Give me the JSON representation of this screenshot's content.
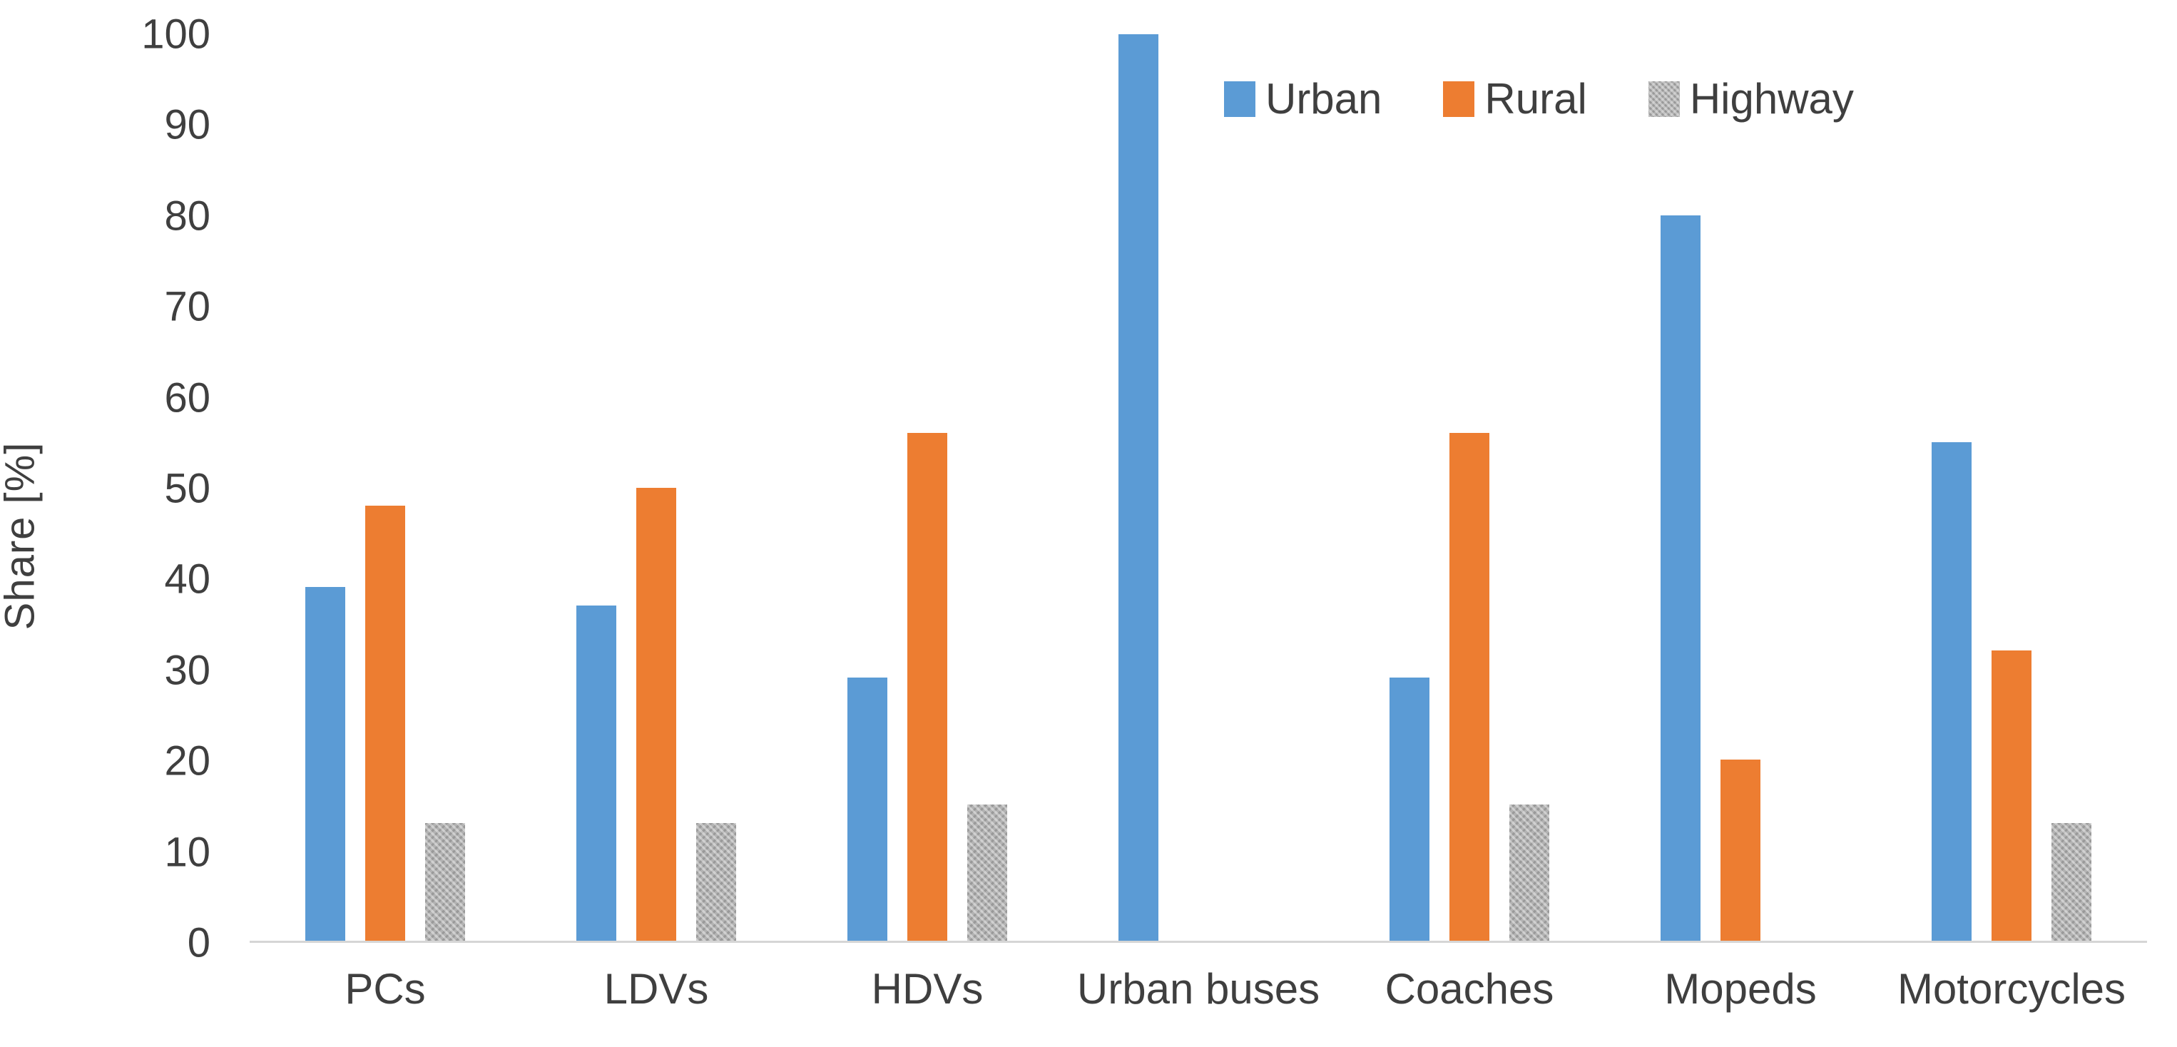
{
  "chart_data": {
    "type": "bar",
    "title": "",
    "ylabel": "Share [%]",
    "xlabel": "",
    "categories": [
      "PCs",
      "LDVs",
      "HDVs",
      "Urban buses",
      "Coaches",
      "Mopeds",
      "Motorcycles"
    ],
    "series": [
      {
        "name": "Urban",
        "color": "#5B9BD5",
        "pattern": "solid",
        "values": [
          39,
          37,
          29,
          100,
          29,
          80,
          55
        ]
      },
      {
        "name": "Rural",
        "color": "#ED7D31",
        "pattern": "solid",
        "values": [
          48,
          50,
          56,
          0,
          56,
          20,
          32
        ]
      },
      {
        "name": "Highway",
        "color": "#B3B3B3",
        "pattern": "textured",
        "values": [
          13,
          13,
          15,
          0,
          15,
          0,
          13
        ]
      }
    ],
    "ylim": [
      0,
      100
    ],
    "yticks": [
      0,
      10,
      20,
      30,
      40,
      50,
      60,
      70,
      80,
      90,
      100
    ],
    "grid": "none",
    "legend_position": "top-right",
    "axis_line_color": "#D6D6D6",
    "text_color": "#3f3f3f"
  }
}
